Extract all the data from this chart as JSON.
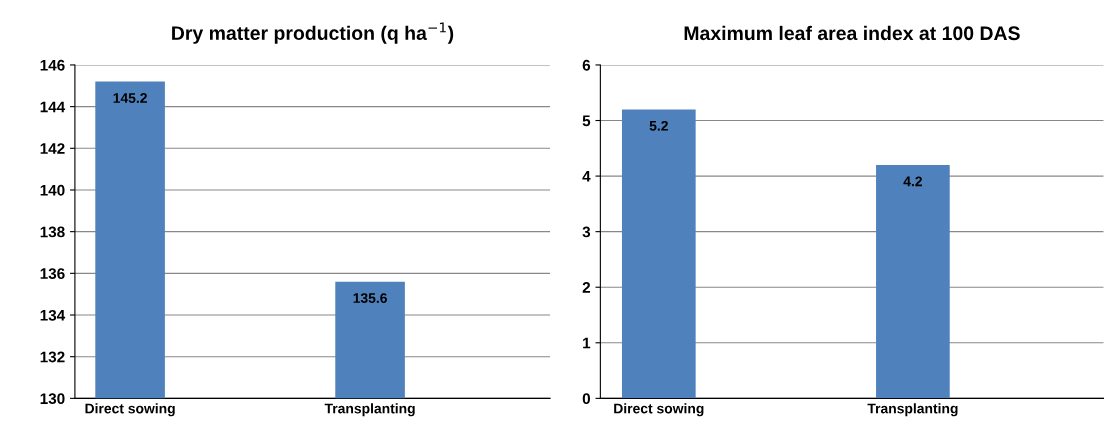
{
  "chart_data": [
    {
      "type": "bar",
      "title": "Dry matter production (q ha$^{−1}$)",
      "categories": [
        "Direct sowing",
        "Transplanting"
      ],
      "values": [
        145.2,
        135.6
      ],
      "color": "#4f81bd",
      "ylim": [
        130,
        146
      ],
      "yticks": [
        130,
        132,
        134,
        136,
        138,
        140,
        142,
        144,
        146
      ],
      "grid": "y",
      "data_labels": true
    },
    {
      "type": "bar",
      "title": "Maximum leaf area index at 100 DAS",
      "categories": [
        "Direct sowing",
        "Transplanting"
      ],
      "values": [
        5.2,
        4.2
      ],
      "color": "#4f81bd",
      "ylim": [
        0,
        6
      ],
      "yticks": [
        0,
        1,
        2,
        3,
        4,
        5,
        6
      ],
      "grid": "y",
      "data_labels": true
    }
  ]
}
